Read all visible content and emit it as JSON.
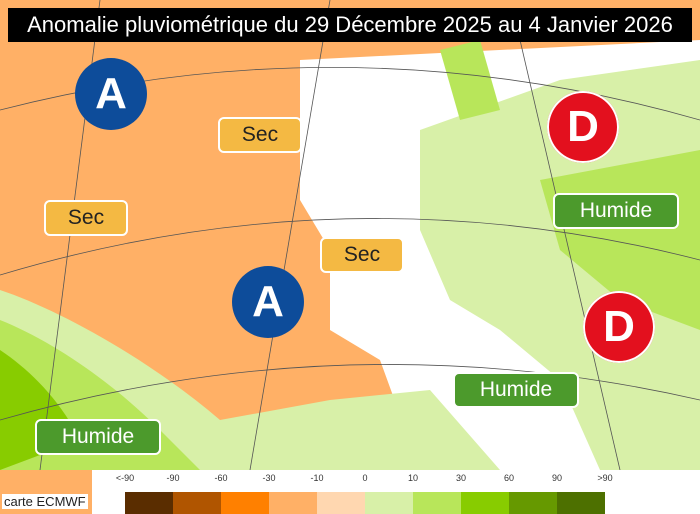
{
  "title": "Anomalie pluviométrique du 29 Décembre 2025 au 4 Janvier 2026",
  "pressure_centers": [
    {
      "type": "A",
      "label": "A"
    },
    {
      "type": "A",
      "label": "A"
    },
    {
      "type": "D",
      "label": "D"
    },
    {
      "type": "D",
      "label": "D"
    }
  ],
  "labels": {
    "sec": [
      "Sec",
      "Sec",
      "Sec"
    ],
    "humide": [
      "Humide",
      "Humide",
      "Humide"
    ]
  },
  "colors": {
    "high": "#0d4c9a",
    "low": "#e3101e",
    "sec": "#f4b943",
    "humide": "#4c9a2c"
  },
  "legend": {
    "ticks": [
      "<-90",
      "-90",
      "-60",
      "-30",
      "-10",
      "0",
      "10",
      "30",
      "60",
      "90",
      ">90"
    ],
    "colors": [
      "#5a2d00",
      "#b05500",
      "#ff8000",
      "#ffb066",
      "#ffd7b0",
      "#d8f0a8",
      "#b8e65a",
      "#88cc00",
      "#669900",
      "#4d7000"
    ]
  },
  "credit": "carte ECMWF"
}
